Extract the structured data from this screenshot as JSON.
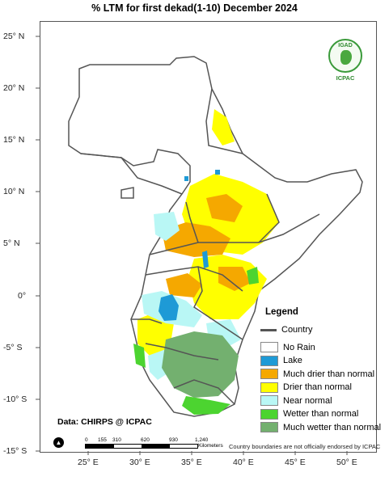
{
  "title": "% LTM  for  first dekad(1-10) December 2024",
  "axes": {
    "lat_labels": [
      "25° N",
      "20° N",
      "15° N",
      "10° N",
      "5° N",
      "0°",
      "-5° S",
      "-10° S",
      "-15° S"
    ],
    "lon_labels": [
      "25° E",
      "30° E",
      "35° E",
      "40° E",
      "45° E",
      "50° E"
    ]
  },
  "logo": {
    "top_text": "IGAD",
    "bottom_text": "ICPAC"
  },
  "legend": {
    "title": "Legend",
    "country_label": "Country",
    "items": [
      {
        "label": "No Rain",
        "color": "#ffffff"
      },
      {
        "label": "Lake",
        "color": "#1e9ad6"
      },
      {
        "label": "Much drier than normal",
        "color": "#f5a800"
      },
      {
        "label": "Drier than normal",
        "color": "#ffff00"
      },
      {
        "label": "Near normal",
        "color": "#b9f7f5"
      },
      {
        "label": "Wetter than normal",
        "color": "#4cd430"
      },
      {
        "label": "Much wetter than normal",
        "color": "#73b06f"
      }
    ]
  },
  "credit": "Data: CHIRPS @ ICPAC",
  "north_symbol": "▲",
  "scale": {
    "ticks": [
      "0",
      "155",
      "310",
      "620",
      "930",
      "1,240"
    ],
    "unit": "Kilometers"
  },
  "disclaimer": "Country boundaries are not officially endorsed by ICPAC"
}
